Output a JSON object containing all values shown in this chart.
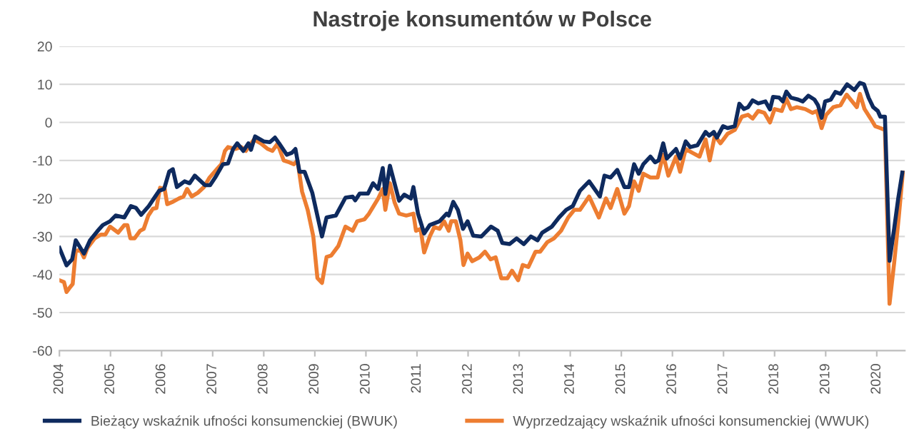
{
  "chart_data": {
    "type": "line",
    "title": "Nastroje konsumentów w Polsce",
    "xlim": [
      2004,
      2020.55
    ],
    "xticks": [
      2004,
      2005,
      2006,
      2007,
      2008,
      2009,
      2010,
      2011,
      2012,
      2013,
      2014,
      2015,
      2016,
      2017,
      2018,
      2019,
      2020
    ],
    "ylim": [
      -60,
      20
    ],
    "yticks": [
      -60,
      -50,
      -40,
      -30,
      -20,
      -10,
      0,
      10,
      20
    ],
    "grid": "y",
    "legend": "bottom",
    "marker": "none",
    "line_style": "solid",
    "series": [
      {
        "name": "Bieżący wskaźnik ufności konsumenckiej (BWUK)",
        "color": "#0e2a5e",
        "x": [
          2004.0,
          2004.14,
          2004.25,
          2004.32,
          2004.48,
          2004.6,
          2004.75,
          2004.85,
          2004.99,
          2005.1,
          2005.27,
          2005.4,
          2005.5,
          2005.6,
          2005.75,
          2005.85,
          2005.95,
          2006.05,
          2006.15,
          2006.22,
          2006.3,
          2006.45,
          2006.55,
          2006.65,
          2006.85,
          2006.95,
          2007.05,
          2007.2,
          2007.3,
          2007.4,
          2007.48,
          2007.6,
          2007.7,
          2007.75,
          2007.83,
          2008.0,
          2008.12,
          2008.22,
          2008.3,
          2008.45,
          2008.55,
          2008.62,
          2008.7,
          2008.8,
          2008.95,
          2009.14,
          2009.23,
          2009.41,
          2009.6,
          2009.74,
          2009.79,
          2009.88,
          2010.04,
          2010.14,
          2010.24,
          2010.33,
          2010.38,
          2010.47,
          2010.65,
          2010.75,
          2010.88,
          2010.93,
          2011.02,
          2011.14,
          2011.25,
          2011.44,
          2011.58,
          2011.62,
          2011.71,
          2011.8,
          2011.9,
          2011.99,
          2012.1,
          2012.26,
          2012.45,
          2012.58,
          2012.67,
          2012.81,
          2012.95,
          2013.09,
          2013.23,
          2013.36,
          2013.45,
          2013.64,
          2013.78,
          2013.92,
          2014.05,
          2014.19,
          2014.37,
          2014.58,
          2014.67,
          2014.79,
          2014.92,
          2015.06,
          2015.15,
          2015.25,
          2015.34,
          2015.43,
          2015.57,
          2015.66,
          2015.73,
          2015.82,
          2015.89,
          2016.07,
          2016.15,
          2016.26,
          2016.35,
          2016.49,
          2016.65,
          2016.72,
          2016.81,
          2016.87,
          2016.99,
          2017.08,
          2017.22,
          2017.31,
          2017.4,
          2017.48,
          2017.57,
          2017.68,
          2017.82,
          2017.91,
          2017.97,
          2018.09,
          2018.16,
          2018.23,
          2018.32,
          2018.46,
          2018.55,
          2018.66,
          2018.78,
          2018.85,
          2018.92,
          2018.99,
          2019.1,
          2019.19,
          2019.29,
          2019.42,
          2019.56,
          2019.67,
          2019.75,
          2019.84,
          2019.93,
          2020.02,
          2020.07,
          2020.16,
          2020.25,
          2020.34,
          2020.42,
          2020.5
        ],
        "values": [
          -33,
          -37.6,
          -36,
          -31,
          -34.5,
          -31,
          -28.5,
          -27,
          -26,
          -24.5,
          -25,
          -22,
          -22.5,
          -24.3,
          -22,
          -20,
          -18,
          -17.5,
          -12.9,
          -12.3,
          -17,
          -15.5,
          -16,
          -14,
          -16.5,
          -16.5,
          -14.5,
          -11,
          -10.8,
          -7,
          -5.5,
          -7.5,
          -5.5,
          -7.2,
          -3.7,
          -5,
          -5.2,
          -4,
          -5.5,
          -8.5,
          -8,
          -7,
          -13,
          -13,
          -18.5,
          -30,
          -25,
          -24.5,
          -19.8,
          -19.5,
          -20.5,
          -18.7,
          -18.7,
          -16,
          -17.5,
          -12,
          -18.8,
          -11.4,
          -20.6,
          -19,
          -20,
          -17,
          -24,
          -29.2,
          -27,
          -26,
          -24,
          -24.5,
          -20.9,
          -23,
          -28,
          -26,
          -29.8,
          -30,
          -27.4,
          -28.5,
          -31.7,
          -32,
          -30.5,
          -32,
          -30,
          -31,
          -29,
          -27.4,
          -25,
          -23,
          -22,
          -18,
          -15.5,
          -19.5,
          -14,
          -14.5,
          -12.5,
          -17,
          -17,
          -11,
          -13.5,
          -11,
          -9,
          -10.5,
          -10,
          -5.5,
          -9.5,
          -7,
          -9.5,
          -5,
          -6.5,
          -6,
          -2.5,
          -3.5,
          -2.5,
          -4,
          -1,
          -1.5,
          -1,
          4.9,
          3.5,
          4,
          5.8,
          5,
          5.5,
          3.4,
          6.7,
          6.5,
          5.5,
          8.1,
          6.5,
          6,
          5.5,
          7,
          6,
          4.5,
          1.2,
          5.5,
          6,
          8,
          7.5,
          10,
          8.5,
          10.4,
          10,
          6.5,
          4,
          3,
          1.5,
          1.5,
          -36.4,
          -28,
          -20,
          -13.2
        ]
      },
      {
        "name": "Wyprzedzający wskaźnik ufności konsumenckiej (WWUK)",
        "color": "#ed7d31",
        "x": [
          2004.0,
          2004.09,
          2004.14,
          2004.2,
          2004.26,
          2004.32,
          2004.41,
          2004.48,
          2004.55,
          2004.69,
          2004.81,
          2004.9,
          2004.99,
          2005.15,
          2005.27,
          2005.33,
          2005.39,
          2005.47,
          2005.58,
          2005.65,
          2005.74,
          2005.83,
          2005.9,
          2005.97,
          2006.06,
          2006.11,
          2006.2,
          2006.34,
          2006.43,
          2006.5,
          2006.59,
          2006.71,
          2006.83,
          2006.94,
          2007.07,
          2007.17,
          2007.24,
          2007.3,
          2007.44,
          2007.56,
          2007.65,
          2007.81,
          2007.94,
          2008.08,
          2008.17,
          2008.27,
          2008.39,
          2008.5,
          2008.59,
          2008.66,
          2008.75,
          2008.86,
          2008.97,
          2009.05,
          2009.14,
          2009.23,
          2009.32,
          2009.46,
          2009.6,
          2009.74,
          2009.83,
          2009.97,
          2010.06,
          2010.15,
          2010.24,
          2010.33,
          2010.38,
          2010.47,
          2010.56,
          2010.65,
          2010.79,
          2010.93,
          2010.98,
          2011.07,
          2011.14,
          2011.25,
          2011.34,
          2011.44,
          2011.53,
          2011.62,
          2011.67,
          2011.76,
          2011.85,
          2011.91,
          2011.99,
          2012.08,
          2012.22,
          2012.33,
          2012.44,
          2012.54,
          2012.65,
          2012.77,
          2012.86,
          2012.98,
          2013.07,
          2013.18,
          2013.32,
          2013.41,
          2013.55,
          2013.68,
          2013.82,
          2013.96,
          2014.08,
          2014.19,
          2014.37,
          2014.56,
          2014.7,
          2014.79,
          2014.92,
          2015.06,
          2015.15,
          2015.25,
          2015.34,
          2015.43,
          2015.57,
          2015.71,
          2015.82,
          2015.92,
          2016.07,
          2016.15,
          2016.26,
          2016.39,
          2016.53,
          2016.65,
          2016.73,
          2016.83,
          2016.94,
          2017.08,
          2017.22,
          2017.36,
          2017.48,
          2017.57,
          2017.68,
          2017.8,
          2017.91,
          2018.0,
          2018.14,
          2018.23,
          2018.32,
          2018.44,
          2018.6,
          2018.74,
          2018.83,
          2018.92,
          2019.01,
          2019.15,
          2019.29,
          2019.41,
          2019.52,
          2019.61,
          2019.67,
          2019.76,
          2019.88,
          2019.97,
          2020.07,
          2020.16,
          2020.25,
          2020.34,
          2020.43,
          2020.51
        ],
        "values": [
          -41.5,
          -42,
          -44.6,
          -43.5,
          -42.5,
          -33.8,
          -33.5,
          -35.5,
          -33,
          -30.5,
          -29.5,
          -29.5,
          -27.4,
          -29,
          -27,
          -27,
          -30.5,
          -30.5,
          -28.5,
          -28,
          -24.5,
          -22.7,
          -22.5,
          -17.2,
          -17.5,
          -21.5,
          -21,
          -20,
          -19.5,
          -17.5,
          -19.5,
          -18.5,
          -17,
          -14.5,
          -12.5,
          -11,
          -7.5,
          -6.5,
          -7,
          -6.5,
          -7.5,
          -4.5,
          -5.5,
          -7,
          -7.5,
          -5.6,
          -10,
          -10.5,
          -11,
          -10,
          -18.2,
          -23,
          -30,
          -40.9,
          -42.2,
          -35.4,
          -35,
          -32.5,
          -27.4,
          -28.5,
          -26,
          -25.5,
          -24,
          -22,
          -20,
          -17.5,
          -23,
          -16,
          -21,
          -24,
          -24.5,
          -24,
          -28.5,
          -28,
          -34.2,
          -30,
          -27.5,
          -28,
          -26,
          -28.5,
          -26,
          -26,
          -31,
          -37.5,
          -34.5,
          -36.5,
          -35.5,
          -34,
          -36,
          -35.5,
          -41,
          -41,
          -39,
          -41.5,
          -37.5,
          -38,
          -34,
          -34,
          -31.5,
          -30.5,
          -28.5,
          -25,
          -23,
          -23,
          -19.5,
          -25,
          -20,
          -22.5,
          -17.5,
          -24,
          -22,
          -15.5,
          -18,
          -13.5,
          -14.5,
          -14.5,
          -8.5,
          -14,
          -9,
          -13,
          -7,
          -8,
          -9,
          -4.5,
          -10,
          -3.5,
          -5.5,
          -3,
          -2,
          1.5,
          2,
          1,
          3,
          2.5,
          0,
          3.5,
          3,
          6.2,
          3.5,
          4,
          3.5,
          2.5,
          3,
          -1.5,
          2,
          4,
          4.5,
          7.3,
          5.5,
          4,
          7.5,
          3.5,
          1,
          -1,
          -1.5,
          -2,
          -47.7,
          -37,
          -25,
          -13.2
        ]
      }
    ]
  }
}
